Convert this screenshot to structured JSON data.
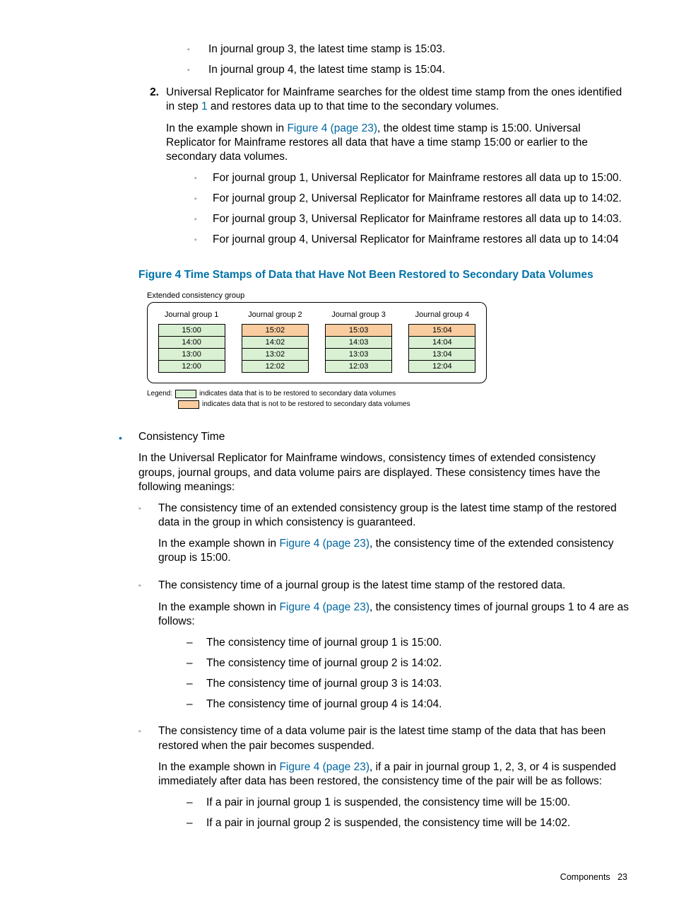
{
  "top_sublist": [
    "In journal group 3, the latest time stamp is 15:03.",
    "In journal group 4, the latest time stamp is 15:04."
  ],
  "step2": {
    "num": "2.",
    "para1_a": "Universal Replicator for Mainframe searches for the oldest time stamp from the ones identified in step ",
    "para1_link": "1",
    "para1_b": " and restores data up to that time to the secondary volumes.",
    "para2_a": "In the example shown in ",
    "para2_link": "Figure 4 (page 23)",
    "para2_b": ", the oldest time stamp is 15:00. Universal Replicator for Mainframe restores all data that have a time stamp 15:00 or earlier to the secondary data volumes.",
    "items": [
      "For journal group 1, Universal Replicator for Mainframe restores all data up to 15:00.",
      "For journal group 2, Universal Replicator for Mainframe restores all data up to 14:02.",
      "For journal group 3, Universal Replicator for Mainframe restores all data up to 14:03.",
      "For journal group 4, Universal Replicator for Mainframe restores all data up to 14:04"
    ]
  },
  "figure": {
    "title": "Figure 4 Time Stamps of Data that Have Not Been Restored to Secondary Data Volumes",
    "ecg_label": "Extended consistency group",
    "colors": {
      "restore": "#d9f0d3",
      "no_restore": "#f9cda0",
      "border": "#000"
    },
    "groups": [
      {
        "title": "Journal group 1",
        "cells": [
          {
            "t": "15:00",
            "c": "restore"
          },
          {
            "t": "14:00",
            "c": "restore"
          },
          {
            "t": "13:00",
            "c": "restore"
          },
          {
            "t": "12:00",
            "c": "restore"
          }
        ]
      },
      {
        "title": "Journal group 2",
        "cells": [
          {
            "t": "15:02",
            "c": "no_restore"
          },
          {
            "t": "14:02",
            "c": "restore"
          },
          {
            "t": "13:02",
            "c": "restore"
          },
          {
            "t": "12:02",
            "c": "restore"
          }
        ]
      },
      {
        "title": "Journal group 3",
        "cells": [
          {
            "t": "15:03",
            "c": "no_restore"
          },
          {
            "t": "14:03",
            "c": "restore"
          },
          {
            "t": "13:03",
            "c": "restore"
          },
          {
            "t": "12:03",
            "c": "restore"
          }
        ]
      },
      {
        "title": "Journal group 4",
        "cells": [
          {
            "t": "15:04",
            "c": "no_restore"
          },
          {
            "t": "14:04",
            "c": "restore"
          },
          {
            "t": "13:04",
            "c": "restore"
          },
          {
            "t": "12:04",
            "c": "restore"
          }
        ]
      }
    ],
    "legend_label": "Legend:",
    "legend1": "indicates data that is to be restored to secondary data volumes",
    "legend2": "indicates data that is not to be restored to secondary data volumes"
  },
  "consistency": {
    "heading": "Consistency Time",
    "intro": "In the Universal Replicator for Mainframe windows, consistency times of extended consistency groups, journal groups, and data volume pairs are displayed. These consistency times have the following meanings:",
    "items": [
      {
        "p1": "The consistency time of an extended consistency group is the latest time stamp of the restored data in the group in which consistency is guaranteed.",
        "p2a": "In the example shown in ",
        "p2link": "Figure 4 (page 23)",
        "p2b": ", the consistency time of the extended consistency group is 15:00."
      },
      {
        "p1": "The consistency time of a journal group is the latest time stamp of the restored data.",
        "p2a": "In the example shown in ",
        "p2link": "Figure 4 (page 23)",
        "p2b": ", the consistency times of journal groups 1 to 4 are as follows:",
        "dashes": [
          "The consistency time of journal group 1 is 15:00.",
          "The consistency time of journal group 2 is 14:02.",
          "The consistency time of journal group 3 is 14:03.",
          "The consistency time of journal group 4 is 14:04."
        ]
      },
      {
        "p1": "The consistency time of a data volume pair is the latest time stamp of the data that has been restored when the pair becomes suspended.",
        "p2a": "In the example shown in ",
        "p2link": "Figure 4 (page 23)",
        "p2b": ", if a pair in journal group 1, 2, 3, or 4 is suspended immediately after data has been restored, the consistency time of the pair will be as follows:",
        "dashes": [
          "If a pair in journal group 1 is suspended, the consistency time will be 15:00.",
          "If a pair in journal group 2 is suspended, the consistency time will be 14:02."
        ]
      }
    ]
  },
  "footer": {
    "label": "Components",
    "page": "23"
  }
}
